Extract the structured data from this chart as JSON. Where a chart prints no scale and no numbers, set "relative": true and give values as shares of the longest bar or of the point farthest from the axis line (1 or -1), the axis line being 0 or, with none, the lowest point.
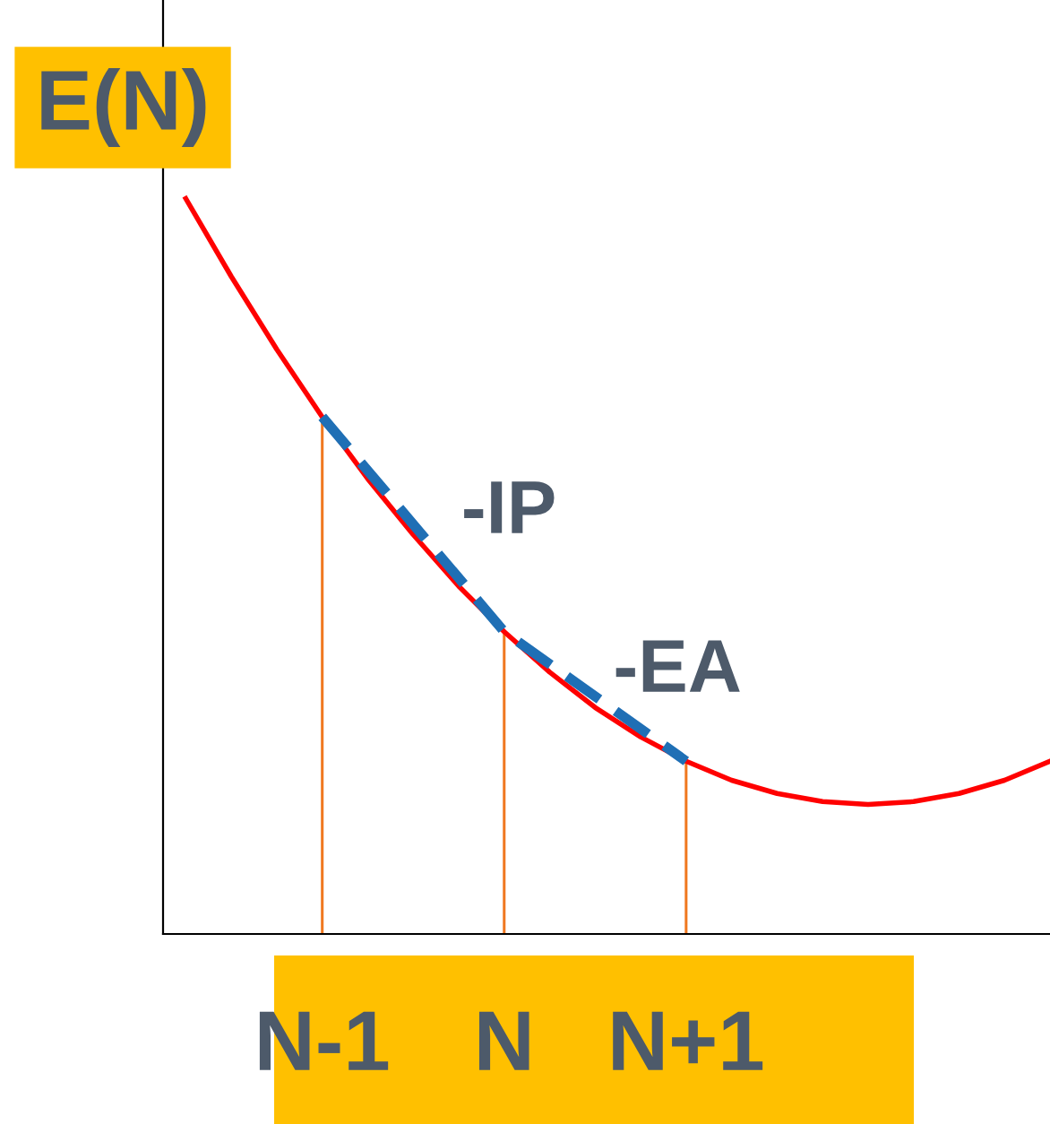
{
  "chart_data": {
    "type": "line",
    "relative": true,
    "ylabel": "E(N)",
    "grid": false,
    "legend": false,
    "categories": [
      null,
      null,
      null,
      "N-1",
      null,
      null,
      null,
      "N",
      null,
      null,
      null,
      "N+1",
      null,
      null,
      null,
      null,
      null,
      null,
      null,
      null
    ],
    "series": [
      {
        "color": "#ff0000",
        "line_style": "solid",
        "values": [
          1.0,
          0.894,
          0.795,
          0.703,
          0.619,
          0.543,
          0.473,
          0.411,
          0.356,
          0.308,
          0.268,
          0.235,
          0.209,
          0.191,
          0.18,
          0.176,
          0.18,
          0.191,
          0.209,
          0.235
        ]
      },
      {
        "type": "bar",
        "color": "#f07820",
        "values": [
          null,
          null,
          null,
          0.703,
          null,
          null,
          null,
          0.411,
          null,
          null,
          null,
          0.235,
          null,
          null,
          null,
          null,
          null,
          null,
          null,
          null
        ]
      },
      {
        "color": "#1f6fb5",
        "line_style": "dashed",
        "values": [
          null,
          null,
          null,
          0.703,
          null,
          null,
          null,
          0.411,
          null,
          null,
          null,
          0.235,
          null,
          null,
          null,
          null,
          null,
          null,
          null,
          null
        ]
      }
    ],
    "annotations": [
      "-IP",
      "-EA"
    ]
  }
}
